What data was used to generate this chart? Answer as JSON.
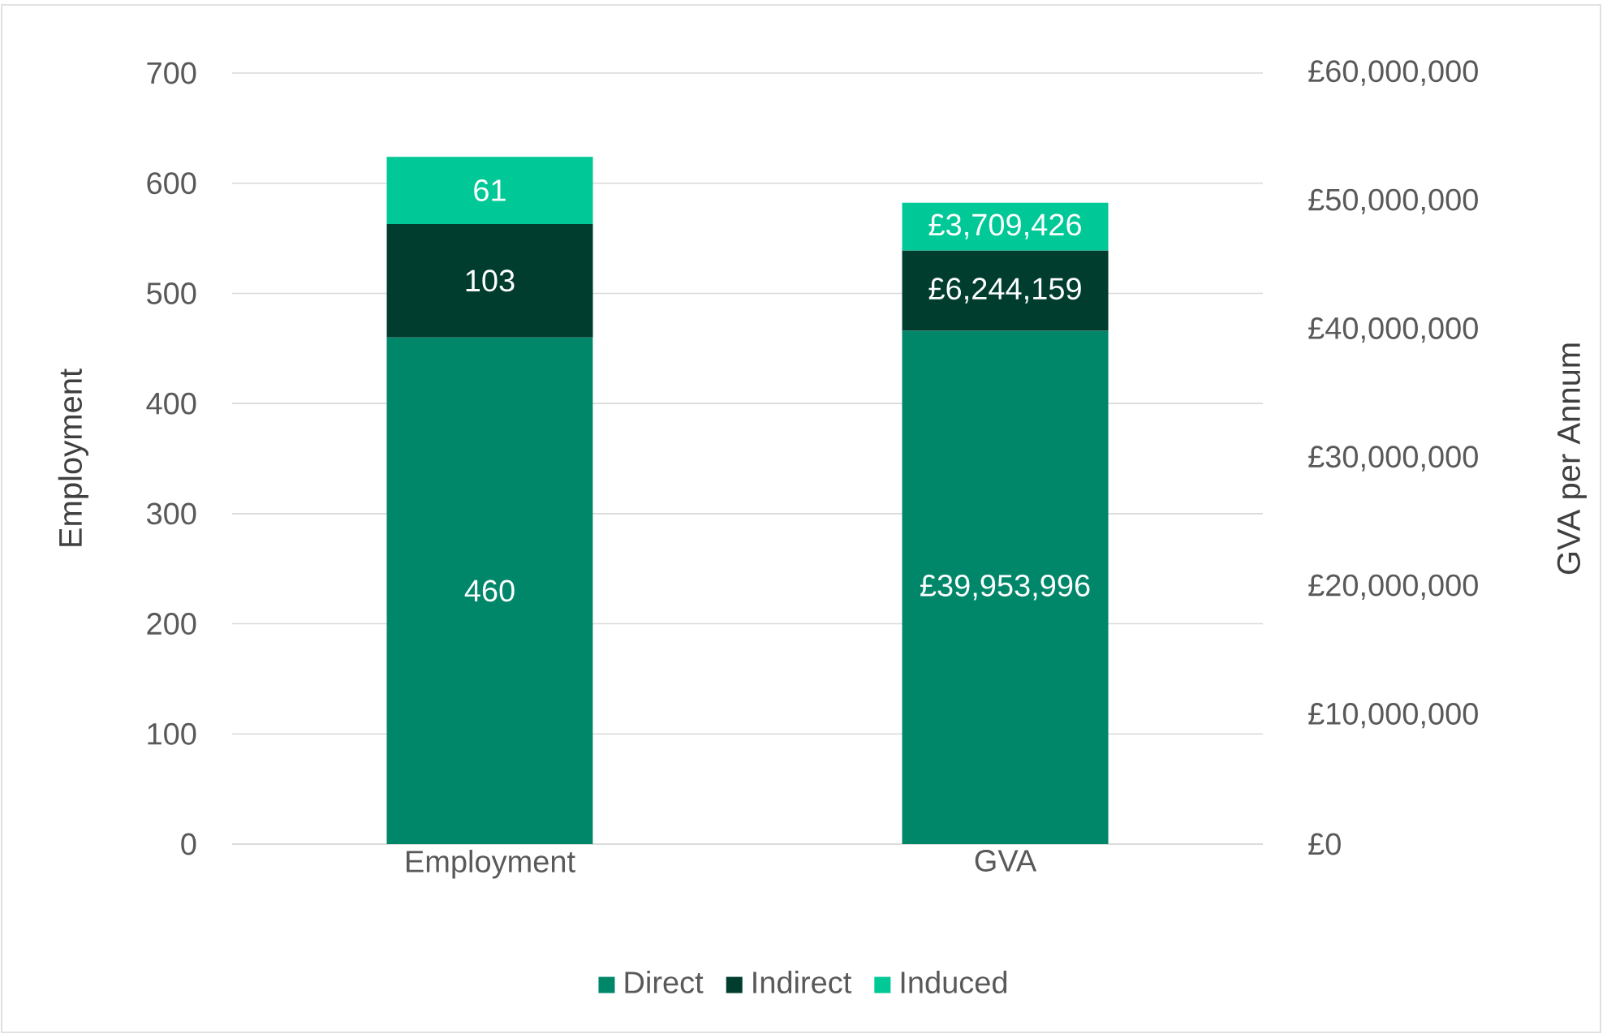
{
  "chart_data": {
    "type": "bar",
    "stacked": true,
    "categories": [
      "Employment",
      "GVA"
    ],
    "ylabel": "Employment",
    "y2label": "GVA per Annum",
    "ylim": [
      0,
      700
    ],
    "yticks": [
      0,
      100,
      200,
      300,
      400,
      500,
      600,
      700
    ],
    "y2lim": [
      0,
      60000000
    ],
    "y2ticks": [
      {
        "value": 0,
        "label": "£0"
      },
      {
        "value": 10000000,
        "label": "£10,000,000"
      },
      {
        "value": 20000000,
        "label": "£20,000,000"
      },
      {
        "value": 30000000,
        "label": "£30,000,000"
      },
      {
        "value": 40000000,
        "label": "£40,000,000"
      },
      {
        "value": 50000000,
        "label": "£50,000,000"
      },
      {
        "value": 60000000,
        "label": "£60,000,000"
      }
    ],
    "grid": "y",
    "legend": "bottom",
    "series": [
      {
        "name": "Direct",
        "color": "#00876a",
        "values": [
          460,
          null
        ],
        "value_labels": [
          "460",
          null
        ]
      },
      {
        "name": "Indirect",
        "color": "#003d2e",
        "values": [
          103,
          null
        ],
        "value_labels": [
          "103",
          null
        ]
      },
      {
        "name": "Induced",
        "color": "#00c896",
        "values": [
          61,
          null
        ],
        "value_labels": [
          "61",
          null
        ]
      },
      {
        "color": "#00876a",
        "axis": "y2",
        "values": [
          null,
          39953996
        ],
        "value_labels": [
          null,
          "£39,953,996"
        ]
      },
      {
        "color": "#003d2e",
        "axis": "y2",
        "values": [
          null,
          6244159
        ],
        "value_labels": [
          null,
          "£6,244,159"
        ]
      },
      {
        "color": "#00c896",
        "axis": "y2",
        "values": [
          null,
          3709426
        ],
        "value_labels": [
          null,
          "£3,709,426"
        ]
      }
    ]
  }
}
